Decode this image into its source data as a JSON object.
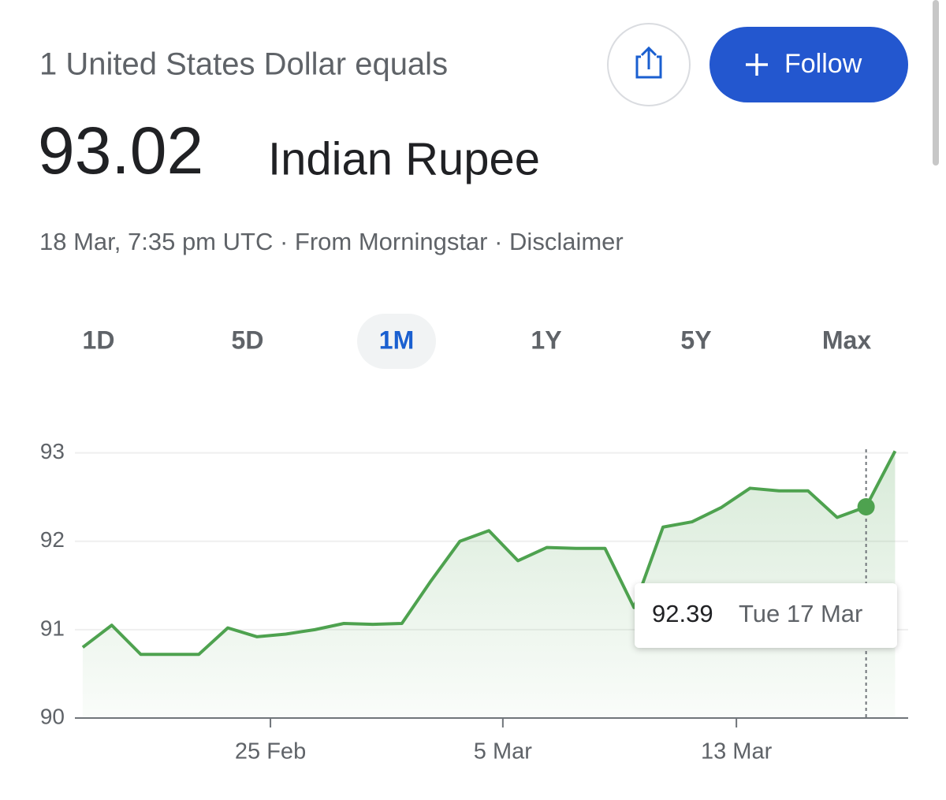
{
  "header": {
    "prefix": "1 United States Dollar equals",
    "amount": "93.02",
    "currency": "Indian Rupee",
    "meta": "18 Mar, 7:35 pm UTC · From Morningstar · Disclaimer",
    "follow": "Follow"
  },
  "tabs": [
    "1D",
    "5D",
    "1M",
    "1Y",
    "5Y",
    "Max"
  ],
  "active_tab": "1M",
  "chart_data": {
    "type": "line",
    "series": [
      {
        "name": "USD to INR",
        "color": "#4ea24f",
        "values": [
          90.8,
          91.05,
          90.72,
          90.72,
          90.72,
          91.02,
          90.92,
          90.95,
          91.0,
          91.07,
          91.06,
          91.07,
          91.55,
          92.0,
          92.12,
          91.78,
          91.93,
          91.92,
          91.92,
          91.25,
          92.16,
          92.22,
          92.38,
          92.6,
          92.57,
          92.57,
          92.27,
          92.39,
          93.02
        ]
      }
    ],
    "xlim": [
      -0.27,
      28.45
    ],
    "xticks": [
      {
        "value": 6.47,
        "label": "25 Feb"
      },
      {
        "value": 14.48,
        "label": "5 Mar"
      },
      {
        "value": 22.53,
        "label": "13 Mar"
      }
    ],
    "ylim": [
      90,
      93.13
    ],
    "yticks": [
      90,
      91,
      92,
      93
    ],
    "grid": true,
    "tooltip": {
      "x": 27,
      "label": "Tue 17 Mar"
    }
  }
}
